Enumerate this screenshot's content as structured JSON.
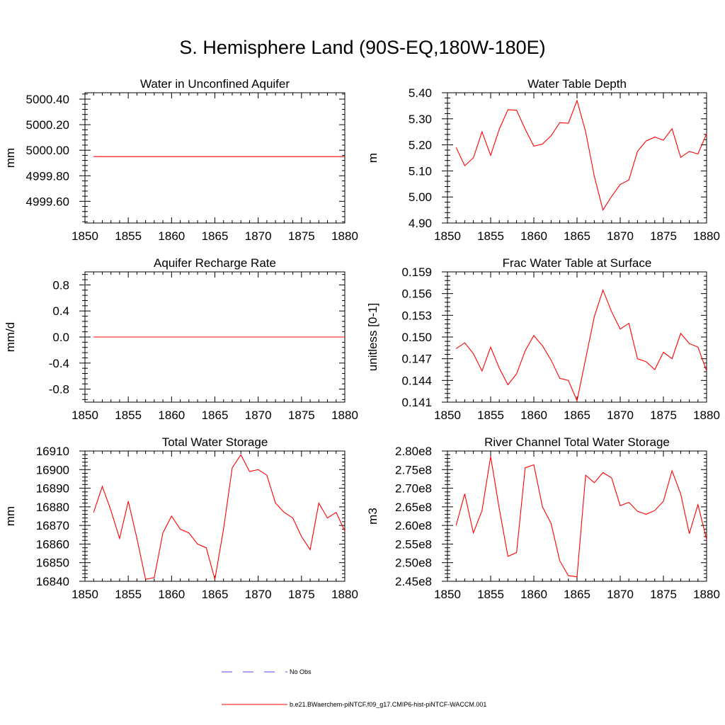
{
  "page_title": "S. Hemisphere Land (90S-EQ,180W-180E)",
  "colors": {
    "model_line": "#ff0000",
    "obs_line": "#4a4aff",
    "axis": "#000000"
  },
  "legend": {
    "items": [
      {
        "label": "No Obs",
        "style": "dashed",
        "color": "#4a4aff"
      },
      {
        "label": "b.e21.BWaerchem-piNTCF.f09_g17.CMIP6-hist-piNTCF-WACCM.001",
        "style": "solid",
        "color": "#ff0000"
      }
    ]
  },
  "chart_data": [
    {
      "type": "line",
      "title": "Water in Unconfined Aquifer",
      "ylabel": "mm",
      "xlim": [
        1850,
        1880
      ],
      "ylim": [
        4999.43,
        5000.45
      ],
      "xticks": [
        1850,
        1855,
        1860,
        1865,
        1870,
        1875,
        1880
      ],
      "yticks": [
        4999.6,
        4999.8,
        5000.0,
        5000.2,
        5000.4
      ],
      "ytick_labels": [
        "4999.60",
        "4999.80",
        "5000.00",
        "5000.20",
        "5000.40"
      ],
      "series": [
        {
          "x": [
            1851,
            1880
          ],
          "y": [
            4999.95,
            4999.95
          ]
        }
      ]
    },
    {
      "type": "line",
      "title": "Water Table Depth",
      "ylabel": "m",
      "xlim": [
        1850,
        1880
      ],
      "ylim": [
        4.9,
        5.4
      ],
      "xticks": [
        1850,
        1855,
        1860,
        1865,
        1870,
        1875,
        1880
      ],
      "yticks": [
        4.9,
        5.0,
        5.1,
        5.2,
        5.3,
        5.4
      ],
      "ytick_labels": [
        "4.90",
        "5.00",
        "5.10",
        "5.20",
        "5.30",
        "5.40"
      ],
      "series": [
        {
          "x": [
            1851,
            1852,
            1853,
            1854,
            1855,
            1856,
            1857,
            1858,
            1859,
            1860,
            1861,
            1862,
            1863,
            1864,
            1865,
            1866,
            1867,
            1868,
            1869,
            1870,
            1871,
            1872,
            1873,
            1874,
            1875,
            1876,
            1877,
            1878,
            1879,
            1880
          ],
          "y": [
            5.19,
            5.12,
            5.15,
            5.25,
            5.16,
            5.26,
            5.335,
            5.333,
            5.26,
            5.195,
            5.203,
            5.235,
            5.285,
            5.283,
            5.37,
            5.25,
            5.08,
            4.95,
            5.002,
            5.048,
            5.065,
            5.175,
            5.215,
            5.23,
            5.218,
            5.262,
            5.152,
            5.175,
            5.165,
            5.243
          ]
        }
      ]
    },
    {
      "type": "line",
      "title": "Aquifer Recharge Rate",
      "ylabel": "mm/d",
      "xlim": [
        1850,
        1880
      ],
      "ylim": [
        -1.0,
        1.0
      ],
      "xticks": [
        1850,
        1855,
        1860,
        1865,
        1870,
        1875,
        1880
      ],
      "yticks": [
        -0.8,
        -0.4,
        0.0,
        0.4,
        0.8
      ],
      "ytick_labels": [
        "-0.8",
        "-0.4",
        "0.0",
        "0.4",
        "0.8"
      ],
      "series": [
        {
          "x": [
            1851,
            1880
          ],
          "y": [
            0.0,
            0.0
          ]
        }
      ]
    },
    {
      "type": "line",
      "title": "Frac Water Table at Surface",
      "ylabel": "unitless [0-1]",
      "xlim": [
        1850,
        1880
      ],
      "ylim": [
        0.141,
        0.159
      ],
      "xticks": [
        1850,
        1855,
        1860,
        1865,
        1870,
        1875,
        1880
      ],
      "yticks": [
        0.141,
        0.144,
        0.147,
        0.15,
        0.153,
        0.156,
        0.159
      ],
      "ytick_labels": [
        "0.141",
        "0.144",
        "0.147",
        "0.150",
        "0.153",
        "0.156",
        "0.159"
      ],
      "series": [
        {
          "x": [
            1851,
            1852,
            1853,
            1854,
            1855,
            1856,
            1857,
            1858,
            1859,
            1860,
            1861,
            1862,
            1863,
            1864,
            1865,
            1866,
            1867,
            1868,
            1869,
            1870,
            1871,
            1872,
            1873,
            1874,
            1875,
            1876,
            1877,
            1878,
            1879,
            1880
          ],
          "y": [
            0.1484,
            0.1492,
            0.1477,
            0.1453,
            0.1486,
            0.1457,
            0.1434,
            0.1449,
            0.1481,
            0.1502,
            0.1488,
            0.1468,
            0.1443,
            0.144,
            0.1412,
            0.147,
            0.1528,
            0.1565,
            0.1535,
            0.1511,
            0.1519,
            0.147,
            0.1466,
            0.1455,
            0.1479,
            0.147,
            0.1505,
            0.1491,
            0.1486,
            0.1453
          ]
        }
      ]
    },
    {
      "type": "line",
      "title": "Total Water Storage",
      "ylabel": "mm",
      "xlim": [
        1850,
        1880
      ],
      "ylim": [
        16840,
        16910
      ],
      "xticks": [
        1850,
        1855,
        1860,
        1865,
        1870,
        1875,
        1880
      ],
      "yticks": [
        16840,
        16850,
        16860,
        16870,
        16880,
        16890,
        16900,
        16910
      ],
      "ytick_labels": [
        "16840",
        "16850",
        "16860",
        "16870",
        "16880",
        "16890",
        "16900",
        "16910"
      ],
      "series": [
        {
          "x": [
            1851,
            1852,
            1853,
            1854,
            1855,
            1856,
            1857,
            1858,
            1859,
            1860,
            1861,
            1862,
            1863,
            1864,
            1865,
            1866,
            1867,
            1868,
            1869,
            1870,
            1871,
            1872,
            1873,
            1874,
            1875,
            1876,
            1877,
            1878,
            1879,
            1880
          ],
          "y": [
            16877,
            16891,
            16878,
            16863,
            16883,
            16863,
            16841,
            16842,
            16866,
            16875,
            16868,
            16866,
            16860,
            16858,
            16841,
            16868,
            16901,
            16908,
            16899,
            16900,
            16897,
            16882,
            16877,
            16874,
            16864,
            16857,
            16882,
            16874,
            16877,
            16867
          ]
        }
      ]
    },
    {
      "type": "line",
      "title": "River Channel Total Water Storage",
      "ylabel": "m3",
      "xlim": [
        1850,
        1880
      ],
      "ylim": [
        245000000.0,
        280000000.0
      ],
      "xticks": [
        1850,
        1855,
        1860,
        1865,
        1870,
        1875,
        1880
      ],
      "yticks": [
        245000000.0,
        250000000.0,
        255000000.0,
        260000000.0,
        265000000.0,
        270000000.0,
        275000000.0,
        280000000.0
      ],
      "ytick_labels": [
        "2.45e8",
        "2.50e8",
        "2.55e8",
        "2.60e8",
        "2.65e8",
        "2.70e8",
        "2.75e8",
        "2.80e8"
      ],
      "series": [
        {
          "x": [
            1851,
            1852,
            1853,
            1854,
            1855,
            1856,
            1857,
            1858,
            1859,
            1860,
            1861,
            1862,
            1863,
            1864,
            1865,
            1866,
            1867,
            1868,
            1869,
            1870,
            1871,
            1872,
            1873,
            1874,
            1875,
            1876,
            1877,
            1878,
            1879,
            1880
          ],
          "y": [
            260000000.0,
            268500000.0,
            258000000.0,
            264000000.0,
            278500000.0,
            264500000.0,
            251700000.0,
            252700000.0,
            275500000.0,
            276300000.0,
            265000000.0,
            260500000.0,
            250500000.0,
            246500000.0,
            246200000.0,
            273500000.0,
            271500000.0,
            274200000.0,
            272800000.0,
            265300000.0,
            266200000.0,
            263800000.0,
            263000000.0,
            264000000.0,
            266500000.0,
            274700000.0,
            268500000.0,
            257800000.0,
            265600000.0,
            256200000.0
          ]
        }
      ]
    }
  ]
}
